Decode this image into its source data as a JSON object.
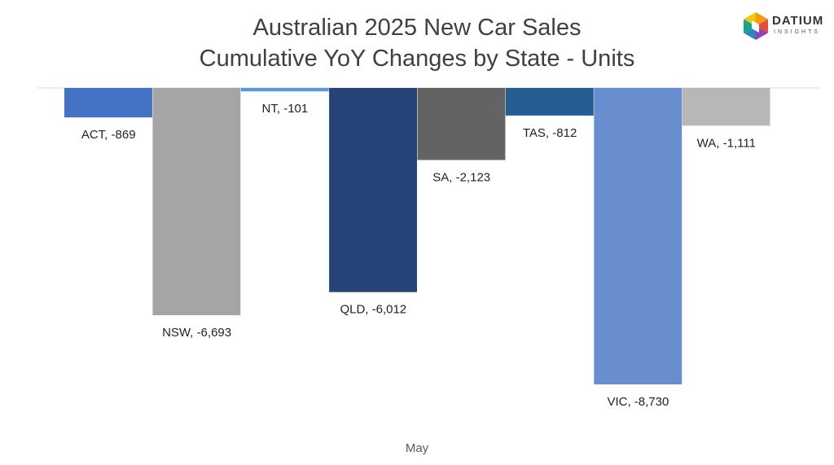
{
  "title_line1": "Australian 2025 New Car Sales",
  "title_line2": "Cumulative YoY Changes by State - Units",
  "logo": {
    "name": "DATIUM",
    "sub": "INSIGHTS"
  },
  "chart_data": {
    "type": "bar",
    "x": [
      "May"
    ],
    "series": [
      {
        "name": "ACT",
        "values": [
          -869
        ],
        "color": "#4472C4",
        "label": "ACT, -869"
      },
      {
        "name": "NSW",
        "values": [
          -6693
        ],
        "color": "#A5A5A5",
        "label": "NSW, -6,693"
      },
      {
        "name": "NT",
        "values": [
          -101
        ],
        "color": "#5B9BD5",
        "label": "NT, -101"
      },
      {
        "name": "QLD",
        "values": [
          -6012
        ],
        "color": "#264478",
        "label": "QLD, -6,012"
      },
      {
        "name": "SA",
        "values": [
          -2123
        ],
        "color": "#636363",
        "label": "SA, -2,123"
      },
      {
        "name": "TAS",
        "values": [
          -812
        ],
        "color": "#255E91",
        "label": "TAS, -812"
      },
      {
        "name": "VIC",
        "values": [
          -8730
        ],
        "color": "#698ED0",
        "label": "VIC, -8,730"
      },
      {
        "name": "WA",
        "values": [
          -1111
        ],
        "color": "#B7B7B7",
        "label": "WA, -1,111"
      }
    ],
    "ylim": [
      -8730,
      0
    ],
    "grid": false,
    "legend": "none"
  }
}
